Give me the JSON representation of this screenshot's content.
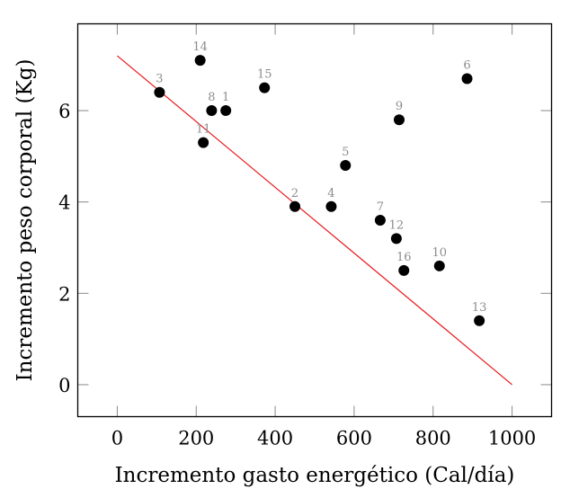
{
  "chart_data": {
    "type": "scatter",
    "title": "",
    "xlabel": "Incremento gasto energético (Cal/día)",
    "ylabel": "Incremento peso corporal (Kg)",
    "xlim": [
      -100,
      1100
    ],
    "ylim": [
      -0.7,
      7.9
    ],
    "xticks": [
      0,
      200,
      400,
      600,
      800,
      1000
    ],
    "yticks": [
      0,
      2,
      4,
      6
    ],
    "xtick_labels": [
      "0",
      "200",
      "400",
      "600",
      "800",
      "1000"
    ],
    "ytick_labels": [
      "0",
      "2",
      "4",
      "6"
    ],
    "grid": false,
    "points": [
      {
        "label": "1",
        "x": 275,
        "y": 6.0
      },
      {
        "label": "2",
        "x": 450,
        "y": 3.9
      },
      {
        "label": "3",
        "x": 107,
        "y": 6.4
      },
      {
        "label": "4",
        "x": 542,
        "y": 3.9
      },
      {
        "label": "5",
        "x": 578,
        "y": 4.8
      },
      {
        "label": "6",
        "x": 886,
        "y": 6.7
      },
      {
        "label": "7",
        "x": 666,
        "y": 3.6
      },
      {
        "label": "8",
        "x": 239,
        "y": 6.0
      },
      {
        "label": "9",
        "x": 714,
        "y": 5.8
      },
      {
        "label": "10",
        "x": 816,
        "y": 2.6
      },
      {
        "label": "11",
        "x": 218,
        "y": 5.3
      },
      {
        "label": "12",
        "x": 707,
        "y": 3.2
      },
      {
        "label": "13",
        "x": 917,
        "y": 1.4
      },
      {
        "label": "14",
        "x": 210,
        "y": 7.1
      },
      {
        "label": "15",
        "x": 373,
        "y": 6.5
      },
      {
        "label": "16",
        "x": 726,
        "y": 2.5
      }
    ],
    "regression_line": {
      "x": [
        0,
        1000
      ],
      "y": [
        7.2,
        0.0
      ],
      "color": "#e8191c"
    },
    "marker_color": "#000000",
    "point_label_color": "#8c8c8c"
  }
}
